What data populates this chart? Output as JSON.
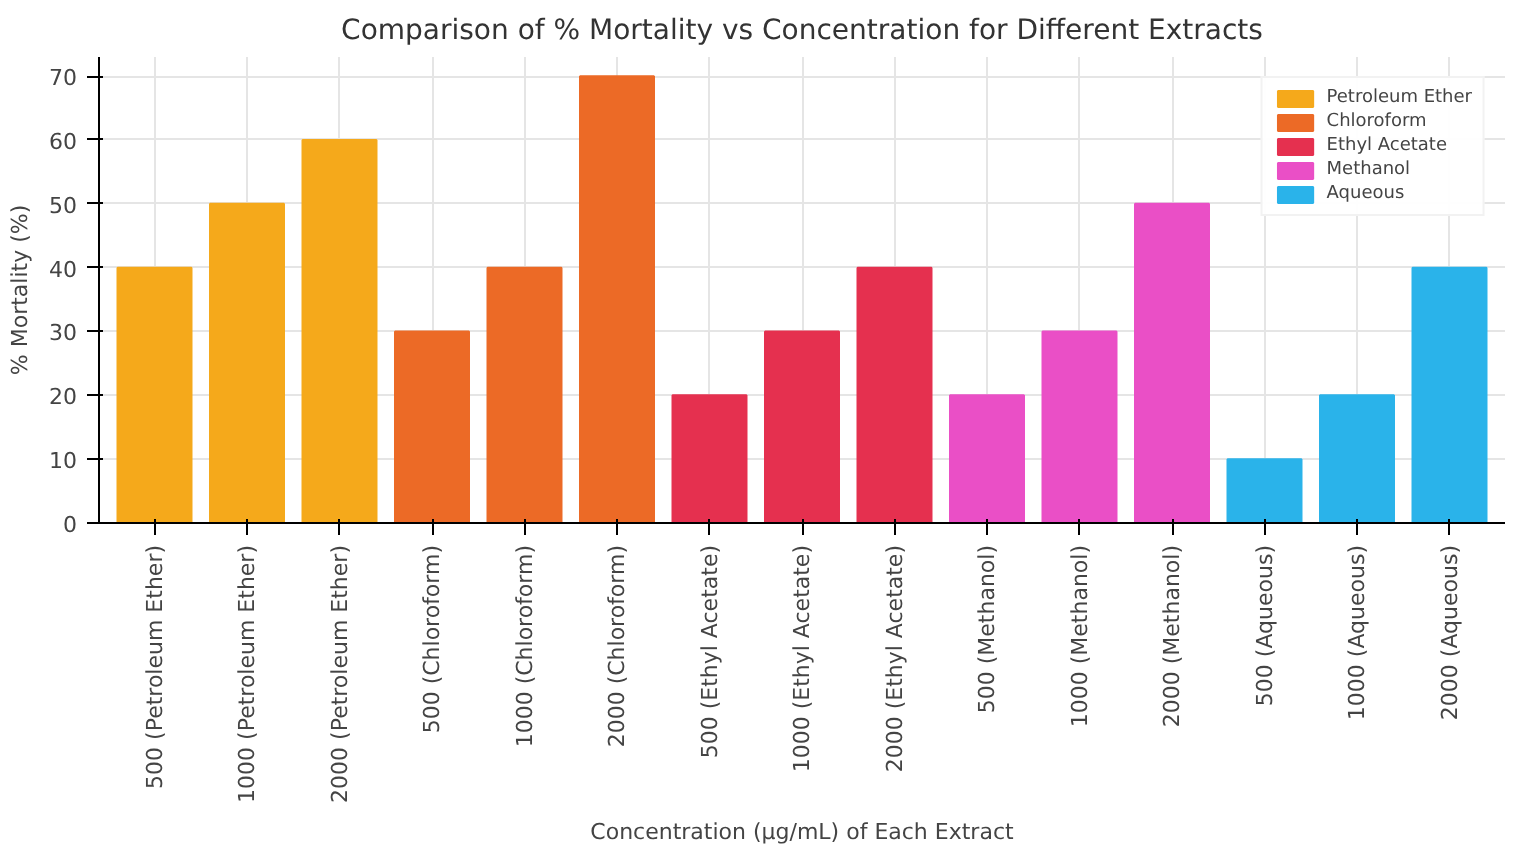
{
  "chart_data": {
    "type": "bar",
    "title": "Comparison of % Mortality vs Concentration for Different Extracts",
    "xlabel": "Concentration (µg/mL) of Each Extract",
    "ylabel": "% Mortality (%)",
    "categories": [
      "500 (Petroleum Ether)",
      "1000 (Petroleum Ether)",
      "2000 (Petroleum Ether)",
      "500 (Chloroform)",
      "1000 (Chloroform)",
      "2000 (Chloroform)",
      "500 (Ethyl Acetate)",
      "1000 (Ethyl Acetate)",
      "2000 (Ethyl Acetate)",
      "500 (Methanol)",
      "1000 (Methanol)",
      "2000 (Methanol)",
      "500 (Aqueous)",
      "1000 (Aqueous)",
      "2000 (Aqueous)"
    ],
    "series": [
      {
        "name": "Petroleum Ether",
        "color": "#f5a91b",
        "values": [
          40,
          50,
          60,
          null,
          null,
          null,
          null,
          null,
          null,
          null,
          null,
          null,
          null,
          null,
          null
        ]
      },
      {
        "name": "Chloroform",
        "color": "#ec6a26",
        "values": [
          null,
          null,
          null,
          30,
          40,
          70,
          null,
          null,
          null,
          null,
          null,
          null,
          null,
          null,
          null
        ]
      },
      {
        "name": "Ethyl Acetate",
        "color": "#e5304f",
        "values": [
          null,
          null,
          null,
          null,
          null,
          null,
          20,
          30,
          40,
          null,
          null,
          null,
          null,
          null,
          null
        ]
      },
      {
        "name": "Methanol",
        "color": "#ea4fc6",
        "values": [
          null,
          null,
          null,
          null,
          null,
          null,
          null,
          null,
          null,
          20,
          30,
          50,
          null,
          null,
          null
        ]
      },
      {
        "name": "Aqueous",
        "color": "#2ab3ea",
        "values": [
          null,
          null,
          null,
          null,
          null,
          null,
          null,
          null,
          null,
          null,
          null,
          null,
          10,
          20,
          40
        ]
      }
    ],
    "ylim": [
      0,
      73
    ],
    "yticks": [
      0,
      10,
      20,
      30,
      40,
      50,
      60,
      70
    ],
    "grid": true,
    "legend": "top right"
  }
}
